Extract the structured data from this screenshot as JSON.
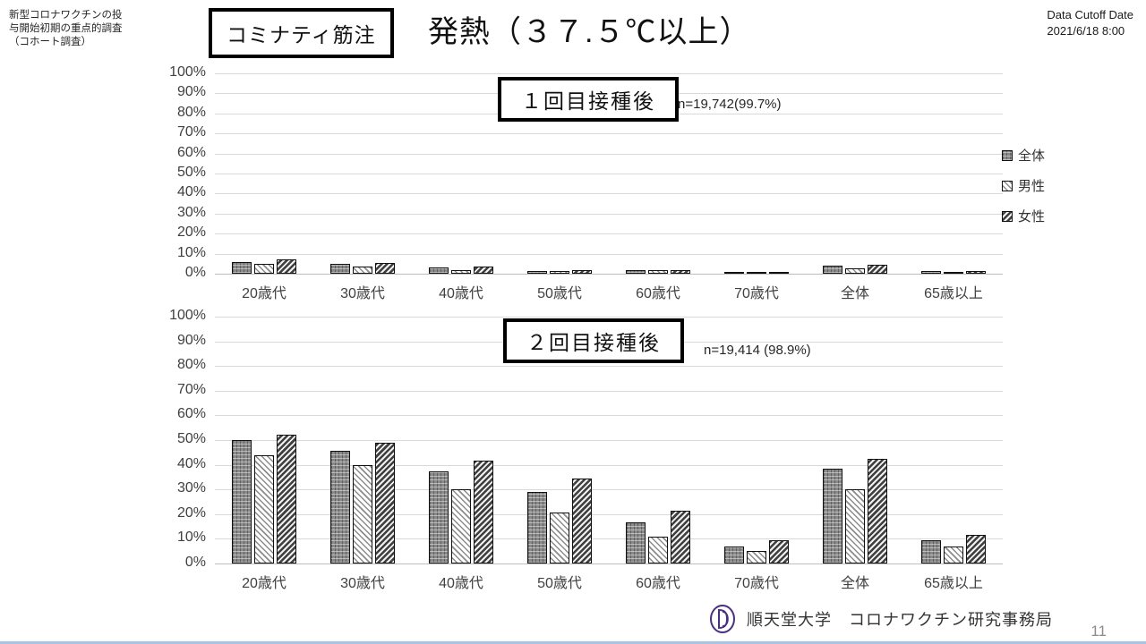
{
  "header": {
    "study_note": [
      "新型コロナワクチンの投",
      "与開始初期の重点的調査",
      "（コホート調査）"
    ],
    "vaccine_box": "コミナティ筋注",
    "title": "発熱（３７.５℃以上）",
    "cutoff_label": "Data Cutoff Date",
    "cutoff_value": "2021/6/18 8:00"
  },
  "legend": [
    {
      "label": "全体",
      "pattern": "all"
    },
    {
      "label": "男性",
      "pattern": "male"
    },
    {
      "label": "女性",
      "pattern": "female"
    }
  ],
  "footer": {
    "org": "順天堂大学　コロナワクチン研究事務局",
    "page": "11"
  },
  "chart_data": [
    {
      "type": "bar",
      "box_label": "１回目接種後",
      "n_label": "n=19,742(99.7%)",
      "ylabel": "%",
      "ylim": [
        0,
        100
      ],
      "ytick_step": 10,
      "grid": true,
      "legend_position": "right",
      "categories": [
        "20歳代",
        "30歳代",
        "40歳代",
        "50歳代",
        "60歳代",
        "70歳代",
        "全体",
        "65歳以上"
      ],
      "series": [
        {
          "name": "全体",
          "pattern": "all",
          "values": [
            6,
            5,
            3,
            1.5,
            1.8,
            1,
            4,
            1.2
          ]
        },
        {
          "name": "男性",
          "pattern": "male",
          "values": [
            5,
            3.5,
            2,
            1.2,
            1.6,
            0.8,
            2.5,
            1
          ]
        },
        {
          "name": "女性",
          "pattern": "female",
          "values": [
            7,
            5.5,
            3.5,
            2,
            2,
            1,
            4.5,
            1.5
          ]
        }
      ]
    },
    {
      "type": "bar",
      "box_label": "２回目接種後",
      "n_label": "n=19,414 (98.9%)",
      "ylabel": "%",
      "ylim": [
        0,
        100
      ],
      "ytick_step": 10,
      "grid": true,
      "legend_position": "none",
      "categories": [
        "20歳代",
        "30歳代",
        "40歳代",
        "50歳代",
        "60歳代",
        "70歳代",
        "全体",
        "65歳以上"
      ],
      "series": [
        {
          "name": "全体",
          "pattern": "all",
          "values": [
            50,
            45.5,
            37.5,
            29,
            16.5,
            7,
            38.5,
            9.5
          ]
        },
        {
          "name": "男性",
          "pattern": "male",
          "values": [
            44,
            40,
            30,
            20.5,
            11,
            5,
            30,
            7
          ]
        },
        {
          "name": "女性",
          "pattern": "female",
          "values": [
            52,
            49,
            41.5,
            34.5,
            21.5,
            9.5,
            42.5,
            11.5
          ]
        }
      ]
    }
  ]
}
